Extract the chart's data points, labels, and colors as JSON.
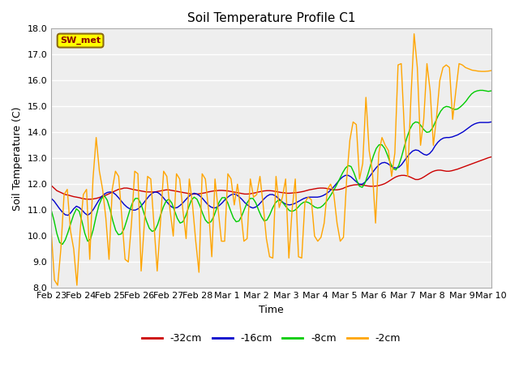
{
  "title": "Soil Temperature Profile C1",
  "xlabel": "Time",
  "ylabel": "Soil Temperature (C)",
  "ylim": [
    8.0,
    18.0
  ],
  "yticks": [
    8.0,
    9.0,
    10.0,
    11.0,
    12.0,
    13.0,
    14.0,
    15.0,
    16.0,
    17.0,
    18.0
  ],
  "fig_bg_color": "#ffffff",
  "plot_bg_color": "#eeeeee",
  "grid_color": "#ffffff",
  "label_box_text": "SW_met",
  "label_box_face": "#ffff00",
  "label_box_edge": "#8b6914",
  "label_box_text_color": "#8b0000",
  "lines": {
    "-32cm": {
      "color": "#cc0000",
      "values": [
        11.95,
        11.85,
        11.75,
        11.7,
        11.65,
        11.6,
        11.58,
        11.55,
        11.52,
        11.5,
        11.48,
        11.45,
        11.43,
        11.42,
        11.42,
        11.43,
        11.45,
        11.48,
        11.52,
        11.55,
        11.6,
        11.65,
        11.7,
        11.75,
        11.8,
        11.82,
        11.85,
        11.85,
        11.83,
        11.8,
        11.78,
        11.76,
        11.74,
        11.72,
        11.7,
        11.7,
        11.7,
        11.7,
        11.72,
        11.74,
        11.76,
        11.78,
        11.78,
        11.76,
        11.74,
        11.72,
        11.7,
        11.68,
        11.66,
        11.64,
        11.62,
        11.62,
        11.62,
        11.63,
        11.65,
        11.67,
        11.7,
        11.72,
        11.74,
        11.75,
        11.76,
        11.76,
        11.75,
        11.74,
        11.72,
        11.7,
        11.68,
        11.66,
        11.64,
        11.62,
        11.62,
        11.63,
        11.65,
        11.67,
        11.7,
        11.72,
        11.74,
        11.75,
        11.75,
        11.74,
        11.72,
        11.7,
        11.68,
        11.67,
        11.65,
        11.65,
        11.66,
        11.67,
        11.68,
        11.7,
        11.72,
        11.75,
        11.78,
        11.8,
        11.82,
        11.84,
        11.85,
        11.85,
        11.84,
        11.82,
        11.8,
        11.78,
        11.78,
        11.8,
        11.83,
        11.88,
        11.92,
        11.95,
        11.97,
        11.98,
        11.98,
        11.97,
        11.95,
        11.93,
        11.92,
        11.92,
        11.93,
        11.95,
        11.98,
        12.02,
        12.08,
        12.15,
        12.22,
        12.28,
        12.32,
        12.34,
        12.34,
        12.32,
        12.28,
        12.23,
        12.18,
        12.18,
        12.22,
        12.28,
        12.35,
        12.42,
        12.48,
        12.52,
        12.54,
        12.54,
        12.52,
        12.5,
        12.5,
        12.52,
        12.55,
        12.58,
        12.62,
        12.66,
        12.7,
        12.74,
        12.78,
        12.82,
        12.86,
        12.9,
        12.94,
        12.98,
        13.02,
        13.05
      ]
    },
    "-16cm": {
      "color": "#0000cc",
      "values": [
        11.45,
        11.35,
        11.2,
        11.05,
        10.92,
        10.82,
        10.8,
        10.9,
        11.05,
        11.15,
        11.1,
        11.0,
        10.88,
        10.8,
        10.88,
        11.02,
        11.2,
        11.38,
        11.52,
        11.62,
        11.68,
        11.7,
        11.68,
        11.6,
        11.48,
        11.35,
        11.22,
        11.12,
        11.05,
        11.0,
        11.0,
        11.05,
        11.15,
        11.28,
        11.42,
        11.55,
        11.65,
        11.7,
        11.68,
        11.6,
        11.48,
        11.35,
        11.22,
        11.12,
        11.08,
        11.1,
        11.18,
        11.28,
        11.4,
        11.52,
        11.6,
        11.65,
        11.62,
        11.55,
        11.45,
        11.32,
        11.2,
        11.12,
        11.08,
        11.1,
        11.18,
        11.28,
        11.4,
        11.5,
        11.58,
        11.62,
        11.6,
        11.52,
        11.42,
        11.3,
        11.2,
        11.12,
        11.08,
        11.12,
        11.2,
        11.32,
        11.44,
        11.54,
        11.6,
        11.6,
        11.55,
        11.46,
        11.36,
        11.27,
        11.22,
        11.2,
        11.22,
        11.26,
        11.32,
        11.38,
        11.44,
        11.48,
        11.5,
        11.5,
        11.5,
        11.5,
        11.52,
        11.56,
        11.62,
        11.7,
        11.8,
        11.92,
        12.05,
        12.18,
        12.28,
        12.34,
        12.34,
        12.28,
        12.18,
        12.08,
        12.0,
        12.0,
        12.08,
        12.2,
        12.35,
        12.5,
        12.64,
        12.75,
        12.82,
        12.84,
        12.8,
        12.72,
        12.65,
        12.62,
        12.65,
        12.75,
        12.9,
        13.05,
        13.18,
        13.28,
        13.32,
        13.3,
        13.22,
        13.15,
        13.12,
        13.18,
        13.3,
        13.48,
        13.62,
        13.72,
        13.78,
        13.8,
        13.8,
        13.82,
        13.86,
        13.9,
        13.96,
        14.02,
        14.1,
        14.18,
        14.26,
        14.32,
        14.36,
        14.38,
        14.38,
        14.38,
        14.38,
        14.4
      ]
    },
    "-8cm": {
      "color": "#00cc00",
      "values": [
        11.0,
        10.6,
        10.1,
        9.75,
        9.68,
        9.85,
        10.15,
        10.5,
        10.82,
        11.05,
        10.95,
        10.55,
        10.1,
        9.8,
        9.88,
        10.25,
        10.75,
        11.18,
        11.45,
        11.55,
        11.38,
        11.02,
        10.58,
        10.22,
        10.05,
        10.08,
        10.28,
        10.62,
        10.98,
        11.28,
        11.45,
        11.45,
        11.25,
        10.92,
        10.58,
        10.3,
        10.18,
        10.22,
        10.45,
        10.8,
        11.12,
        11.35,
        11.42,
        11.28,
        10.98,
        10.68,
        10.5,
        10.55,
        10.78,
        11.1,
        11.38,
        11.5,
        11.42,
        11.18,
        10.88,
        10.62,
        10.5,
        10.55,
        10.75,
        11.05,
        11.32,
        11.48,
        11.48,
        11.28,
        10.98,
        10.7,
        10.55,
        10.58,
        10.78,
        11.05,
        11.3,
        11.45,
        11.45,
        11.28,
        11.0,
        10.75,
        10.58,
        10.62,
        10.82,
        11.08,
        11.28,
        11.38,
        11.36,
        11.24,
        11.1,
        10.98,
        10.95,
        11.0,
        11.1,
        11.22,
        11.3,
        11.32,
        11.28,
        11.2,
        11.12,
        11.08,
        11.1,
        11.18,
        11.3,
        11.45,
        11.62,
        11.8,
        12.0,
        12.22,
        12.44,
        12.62,
        12.72,
        12.68,
        12.45,
        12.15,
        11.92,
        11.88,
        12.05,
        12.38,
        12.75,
        13.1,
        13.38,
        13.52,
        13.52,
        13.38,
        13.12,
        12.82,
        12.6,
        12.55,
        12.72,
        13.05,
        13.45,
        13.82,
        14.12,
        14.32,
        14.4,
        14.38,
        14.25,
        14.1,
        14.0,
        14.02,
        14.15,
        14.38,
        14.62,
        14.82,
        14.95,
        15.0,
        14.98,
        14.92,
        14.88,
        14.9,
        14.98,
        15.08,
        15.2,
        15.35,
        15.48,
        15.56,
        15.6,
        15.62,
        15.62,
        15.6,
        15.58,
        15.6
      ]
    },
    "-2cm": {
      "color": "#ffa500",
      "values": [
        10.2,
        8.3,
        8.1,
        9.5,
        11.6,
        11.8,
        10.2,
        9.5,
        8.1,
        10.2,
        11.6,
        11.8,
        9.1,
        12.2,
        13.8,
        12.5,
        11.8,
        10.7,
        9.1,
        11.8,
        12.5,
        12.3,
        10.7,
        9.1,
        9.0,
        10.5,
        12.5,
        12.4,
        8.65,
        10.5,
        12.3,
        12.2,
        10.4,
        8.65,
        10.5,
        12.5,
        12.3,
        11.0,
        10.0,
        12.4,
        12.2,
        11.0,
        9.9,
        12.2,
        11.2,
        9.8,
        8.6,
        12.4,
        12.2,
        11.0,
        9.2,
        12.2,
        11.0,
        9.8,
        9.8,
        12.4,
        12.2,
        11.2,
        12.0,
        11.0,
        9.8,
        9.9,
        12.2,
        11.5,
        11.6,
        12.3,
        11.2,
        9.9,
        9.2,
        9.15,
        12.3,
        11.1,
        11.5,
        12.2,
        9.15,
        11.0,
        12.2,
        9.2,
        9.15,
        11.3,
        11.5,
        11.4,
        10.0,
        9.8,
        9.95,
        10.5,
        11.8,
        12.0,
        11.6,
        10.5,
        9.8,
        9.95,
        12.2,
        13.7,
        14.4,
        14.3,
        12.2,
        12.8,
        15.35,
        13.3,
        12.5,
        10.5,
        13.2,
        13.8,
        13.5,
        13.3,
        12.3,
        13.2,
        16.6,
        16.65,
        14.0,
        12.3,
        15.3,
        17.8,
        16.5,
        13.5,
        14.5,
        16.65,
        15.6,
        13.5,
        14.6,
        16.0,
        16.5,
        16.6,
        16.5,
        14.5,
        15.6,
        16.65,
        16.6,
        16.5,
        16.45,
        16.4,
        16.38,
        16.36,
        16.35,
        16.35,
        16.36,
        16.38
      ]
    }
  },
  "x_tick_labels": [
    "Feb 23",
    "Feb 24",
    "Feb 25",
    "Feb 26",
    "Feb 27",
    "Feb 28",
    "Mar 1",
    "Mar 2",
    "Mar 3",
    "Mar 4",
    "Mar 5",
    "Mar 6",
    "Mar 7",
    "Mar 8",
    "Mar 9",
    "Mar 10"
  ],
  "n_days": 16,
  "legend": [
    {
      "label": "-32cm",
      "color": "#cc0000"
    },
    {
      "label": "-16cm",
      "color": "#0000cc"
    },
    {
      "label": "-8cm",
      "color": "#00cc00"
    },
    {
      "label": "-2cm",
      "color": "#ffa500"
    }
  ]
}
